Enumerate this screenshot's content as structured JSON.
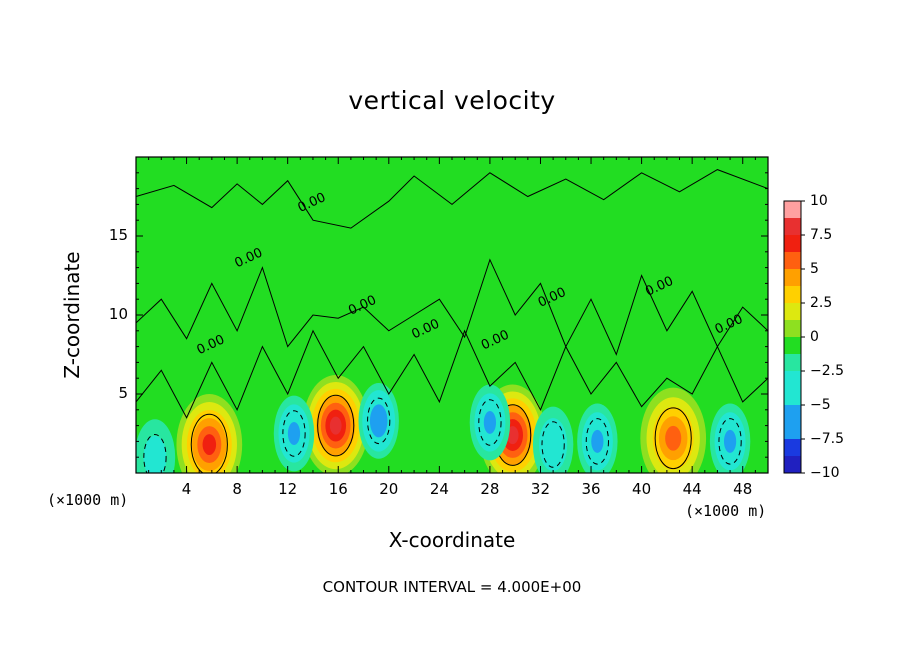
{
  "title": "vertical velocity",
  "footer": "CONTOUR INTERVAL = 4.000E+00",
  "colors": {
    "background_field": "#22dd22",
    "contour_line": "#000000"
  },
  "chart_data": {
    "type": "heatmap",
    "title": "vertical velocity",
    "xlabel": "X-coordinate",
    "ylabel": "Z-coordinate",
    "x_unit": "(×1000 m)",
    "xlim": [
      0,
      50
    ],
    "ylim": [
      0,
      20
    ],
    "x_ticks": [
      "4",
      "8",
      "12",
      "16",
      "20",
      "24",
      "28",
      "32",
      "36",
      "40",
      "44",
      "48"
    ],
    "y_ticks": [
      "5",
      "10",
      "15"
    ],
    "colorbar": {
      "ticks": [
        "10",
        "7.5",
        "5",
        "2.5",
        "0",
        "−2.5",
        "−5",
        "−7.5",
        "−10"
      ],
      "range": [
        -10,
        10
      ]
    },
    "contour_interval": "4.000E+00",
    "contour_label": "0.00",
    "features": [
      {
        "x": 5.8,
        "z": 1.8,
        "value": 8
      },
      {
        "x": 15.8,
        "z": 3.0,
        "value": 9
      },
      {
        "x": 29.8,
        "z": 2.4,
        "value": 9
      },
      {
        "x": 42.5,
        "z": 2.2,
        "value": 7
      },
      {
        "x": 12.5,
        "z": 2.5,
        "value": -5
      },
      {
        "x": 19.2,
        "z": 3.3,
        "value": -7
      },
      {
        "x": 28.0,
        "z": 3.2,
        "value": -5
      },
      {
        "x": 33.0,
        "z": 1.8,
        "value": -4
      },
      {
        "x": 36.5,
        "z": 2.0,
        "value": -5
      },
      {
        "x": 47.0,
        "z": 2.0,
        "value": -5
      },
      {
        "x": 1.5,
        "z": 1.0,
        "value": -3
      }
    ]
  }
}
